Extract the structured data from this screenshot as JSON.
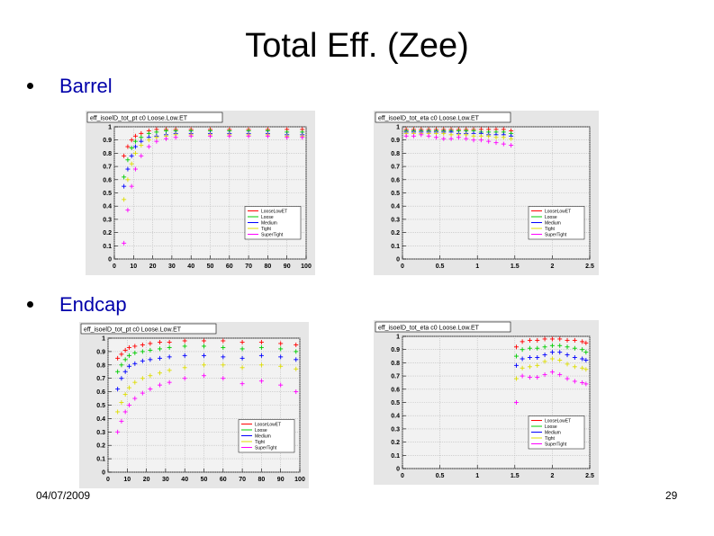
{
  "slide": {
    "title": "Total Eff. (Zee)",
    "bullets": [
      "Barrel",
      "Endcap"
    ],
    "date": "04/07/2009",
    "page": "29"
  },
  "chart_data": [
    {
      "type": "scatter",
      "panel": "barrel-pt",
      "title": "eff_isoelD_tot_pt c0 Loose.Low.ET",
      "xlim": [
        0,
        100
      ],
      "ylim": [
        0,
        1
      ],
      "xticks": [
        0,
        10,
        20,
        30,
        40,
        50,
        60,
        70,
        80,
        90,
        100
      ],
      "yticks": [
        0,
        0.1,
        0.2,
        0.3,
        0.4,
        0.5,
        0.6,
        0.7,
        0.8,
        0.9,
        1
      ],
      "grid": true,
      "legend": "bottom-right",
      "series": [
        {
          "name": "LooseLowET",
          "color": "#ff0000",
          "x": [
            5,
            7,
            9,
            11,
            14,
            18,
            22,
            27,
            32,
            40,
            50,
            60,
            70,
            80,
            90,
            98
          ],
          "y": [
            0.78,
            0.85,
            0.9,
            0.93,
            0.95,
            0.97,
            0.98,
            0.98,
            0.98,
            0.98,
            0.98,
            0.98,
            0.98,
            0.98,
            0.98,
            0.98
          ]
        },
        {
          "name": "Loose",
          "color": "#00cc00",
          "x": [
            5,
            7,
            9,
            11,
            14,
            18,
            22,
            27,
            32,
            40,
            50,
            60,
            70,
            80,
            90,
            98
          ],
          "y": [
            0.62,
            0.75,
            0.84,
            0.89,
            0.92,
            0.95,
            0.96,
            0.97,
            0.97,
            0.97,
            0.97,
            0.97,
            0.97,
            0.97,
            0.96,
            0.96
          ]
        },
        {
          "name": "Medium",
          "color": "#0000ff",
          "x": [
            5,
            7,
            9,
            11,
            14,
            18,
            22,
            27,
            32,
            40,
            50,
            60,
            70,
            80,
            90,
            98
          ],
          "y": [
            0.55,
            0.68,
            0.78,
            0.85,
            0.89,
            0.92,
            0.93,
            0.94,
            0.95,
            0.95,
            0.95,
            0.95,
            0.95,
            0.95,
            0.94,
            0.94
          ]
        },
        {
          "name": "Tight",
          "color": "#dddd00",
          "x": [
            5,
            7,
            9,
            11,
            14,
            18,
            22,
            27,
            32,
            40,
            50,
            60,
            70,
            80,
            90,
            98
          ],
          "y": [
            0.45,
            0.6,
            0.72,
            0.8,
            0.86,
            0.9,
            0.92,
            0.93,
            0.94,
            0.94,
            0.94,
            0.94,
            0.94,
            0.94,
            0.93,
            0.93
          ]
        },
        {
          "name": "SuperTight",
          "color": "#ff00ff",
          "x": [
            5,
            7,
            9,
            11,
            14,
            18,
            22,
            27,
            32,
            40,
            50,
            60,
            70,
            80,
            90,
            98
          ],
          "y": [
            0.12,
            0.37,
            0.55,
            0.68,
            0.78,
            0.85,
            0.89,
            0.91,
            0.92,
            0.93,
            0.93,
            0.93,
            0.93,
            0.93,
            0.92,
            0.92
          ]
        }
      ]
    },
    {
      "type": "scatter",
      "panel": "barrel-eta",
      "title": "eff_isoelD_tot_eta c0 Loose.Low.ET",
      "xlim": [
        0,
        2.5
      ],
      "ylim": [
        0,
        1
      ],
      "xticks": [
        0,
        0.5,
        1,
        1.5,
        2,
        2.5
      ],
      "yticks": [
        0,
        0.1,
        0.2,
        0.3,
        0.4,
        0.5,
        0.6,
        0.7,
        0.8,
        0.9,
        1
      ],
      "grid": true,
      "legend": "bottom-right",
      "series": [
        {
          "name": "LooseLowET",
          "color": "#ff0000",
          "x": [
            0.05,
            0.15,
            0.25,
            0.35,
            0.45,
            0.55,
            0.65,
            0.75,
            0.85,
            0.95,
            1.05,
            1.15,
            1.25,
            1.35,
            1.45
          ],
          "y": [
            0.98,
            0.98,
            0.98,
            0.98,
            0.98,
            0.98,
            0.98,
            0.98,
            0.98,
            0.98,
            0.98,
            0.98,
            0.98,
            0.98,
            0.97
          ]
        },
        {
          "name": "Loose",
          "color": "#00cc00",
          "x": [
            0.05,
            0.15,
            0.25,
            0.35,
            0.45,
            0.55,
            0.65,
            0.75,
            0.85,
            0.95,
            1.05,
            1.15,
            1.25,
            1.35,
            1.45
          ],
          "y": [
            0.97,
            0.97,
            0.97,
            0.97,
            0.97,
            0.97,
            0.97,
            0.97,
            0.97,
            0.97,
            0.96,
            0.96,
            0.96,
            0.96,
            0.95
          ]
        },
        {
          "name": "Medium",
          "color": "#0000ff",
          "x": [
            0.05,
            0.15,
            0.25,
            0.35,
            0.45,
            0.55,
            0.65,
            0.75,
            0.85,
            0.95,
            1.05,
            1.15,
            1.25,
            1.35,
            1.45
          ],
          "y": [
            0.96,
            0.96,
            0.96,
            0.96,
            0.96,
            0.96,
            0.96,
            0.95,
            0.95,
            0.95,
            0.95,
            0.94,
            0.94,
            0.94,
            0.93
          ]
        },
        {
          "name": "Tight",
          "color": "#dddd00",
          "x": [
            0.05,
            0.15,
            0.25,
            0.35,
            0.45,
            0.55,
            0.65,
            0.75,
            0.85,
            0.95,
            1.05,
            1.15,
            1.25,
            1.35,
            1.45
          ],
          "y": [
            0.95,
            0.95,
            0.95,
            0.95,
            0.95,
            0.95,
            0.94,
            0.94,
            0.94,
            0.93,
            0.93,
            0.93,
            0.92,
            0.92,
            0.91
          ]
        },
        {
          "name": "SuperTight",
          "color": "#ff00ff",
          "x": [
            0.05,
            0.15,
            0.25,
            0.35,
            0.45,
            0.55,
            0.65,
            0.75,
            0.85,
            0.95,
            1.05,
            1.15,
            1.25,
            1.35,
            1.45
          ],
          "y": [
            0.93,
            0.93,
            0.94,
            0.93,
            0.92,
            0.91,
            0.91,
            0.92,
            0.91,
            0.9,
            0.9,
            0.89,
            0.88,
            0.87,
            0.86
          ]
        }
      ]
    },
    {
      "type": "scatter",
      "panel": "endcap-pt",
      "title": "eff_isoelD_tot_pt c0 Loose.Low.ET",
      "xlim": [
        0,
        100
      ],
      "ylim": [
        0,
        1
      ],
      "xticks": [
        0,
        10,
        20,
        30,
        40,
        50,
        60,
        70,
        80,
        90,
        100
      ],
      "yticks": [
        0,
        0.1,
        0.2,
        0.3,
        0.4,
        0.5,
        0.6,
        0.7,
        0.8,
        0.9,
        1
      ],
      "grid": true,
      "legend": "bottom-right",
      "series": [
        {
          "name": "LooseLowET",
          "color": "#ff0000",
          "x": [
            5,
            7,
            9,
            11,
            14,
            18,
            22,
            27,
            32,
            40,
            50,
            60,
            70,
            80,
            90,
            98
          ],
          "y": [
            0.85,
            0.88,
            0.91,
            0.93,
            0.94,
            0.95,
            0.96,
            0.97,
            0.97,
            0.98,
            0.98,
            0.98,
            0.97,
            0.97,
            0.96,
            0.95
          ]
        },
        {
          "name": "Loose",
          "color": "#00cc00",
          "x": [
            5,
            7,
            9,
            11,
            14,
            18,
            22,
            27,
            32,
            40,
            50,
            60,
            70,
            80,
            90,
            98
          ],
          "y": [
            0.75,
            0.8,
            0.84,
            0.87,
            0.89,
            0.9,
            0.91,
            0.92,
            0.93,
            0.94,
            0.94,
            0.93,
            0.92,
            0.93,
            0.92,
            0.9
          ]
        },
        {
          "name": "Medium",
          "color": "#0000ff",
          "x": [
            5,
            7,
            9,
            11,
            14,
            18,
            22,
            27,
            32,
            40,
            50,
            60,
            70,
            80,
            90,
            98
          ],
          "y": [
            0.62,
            0.7,
            0.75,
            0.79,
            0.81,
            0.83,
            0.84,
            0.85,
            0.86,
            0.87,
            0.87,
            0.86,
            0.85,
            0.87,
            0.86,
            0.84
          ]
        },
        {
          "name": "Tight",
          "color": "#dddd00",
          "x": [
            5,
            7,
            9,
            11,
            14,
            18,
            22,
            27,
            32,
            40,
            50,
            60,
            70,
            80,
            90,
            98
          ],
          "y": [
            0.45,
            0.52,
            0.58,
            0.63,
            0.67,
            0.7,
            0.72,
            0.74,
            0.76,
            0.78,
            0.8,
            0.8,
            0.78,
            0.8,
            0.79,
            0.77
          ]
        },
        {
          "name": "SuperTight",
          "color": "#ff00ff",
          "x": [
            5,
            7,
            9,
            11,
            14,
            18,
            22,
            27,
            32,
            40,
            50,
            60,
            70,
            80,
            90,
            98
          ],
          "y": [
            0.3,
            0.38,
            0.45,
            0.5,
            0.55,
            0.59,
            0.62,
            0.65,
            0.67,
            0.7,
            0.72,
            0.7,
            0.66,
            0.68,
            0.65,
            0.6
          ]
        }
      ]
    },
    {
      "type": "scatter",
      "panel": "endcap-eta",
      "title": "eff_isoelD_tot_eta c0 Loose.Low.ET",
      "xlim": [
        0,
        2.5
      ],
      "ylim": [
        0,
        1
      ],
      "xticks": [
        0,
        0.5,
        1,
        1.5,
        2,
        2.5
      ],
      "yticks": [
        0,
        0.1,
        0.2,
        0.3,
        0.4,
        0.5,
        0.6,
        0.7,
        0.8,
        0.9,
        1
      ],
      "grid": true,
      "legend": "bottom-right",
      "series": [
        {
          "name": "LooseLowET",
          "color": "#ff0000",
          "x": [
            1.52,
            1.6,
            1.7,
            1.8,
            1.9,
            2.0,
            2.1,
            2.2,
            2.3,
            2.4,
            2.45
          ],
          "y": [
            0.92,
            0.96,
            0.97,
            0.97,
            0.98,
            0.98,
            0.98,
            0.97,
            0.97,
            0.96,
            0.95
          ]
        },
        {
          "name": "Loose",
          "color": "#00cc00",
          "x": [
            1.52,
            1.6,
            1.7,
            1.8,
            1.9,
            2.0,
            2.1,
            2.2,
            2.3,
            2.4,
            2.45
          ],
          "y": [
            0.85,
            0.9,
            0.91,
            0.91,
            0.92,
            0.93,
            0.93,
            0.92,
            0.91,
            0.9,
            0.88
          ]
        },
        {
          "name": "Medium",
          "color": "#0000ff",
          "x": [
            1.52,
            1.6,
            1.7,
            1.8,
            1.9,
            2.0,
            2.1,
            2.2,
            2.3,
            2.4,
            2.45
          ],
          "y": [
            0.78,
            0.83,
            0.84,
            0.84,
            0.86,
            0.88,
            0.88,
            0.86,
            0.84,
            0.83,
            0.82
          ]
        },
        {
          "name": "Tight",
          "color": "#dddd00",
          "x": [
            1.52,
            1.6,
            1.7,
            1.8,
            1.9,
            2.0,
            2.1,
            2.2,
            2.3,
            2.4,
            2.45
          ],
          "y": [
            0.68,
            0.76,
            0.77,
            0.78,
            0.81,
            0.83,
            0.82,
            0.79,
            0.77,
            0.76,
            0.75
          ]
        },
        {
          "name": "SuperTight",
          "color": "#ff00ff",
          "x": [
            1.52,
            1.6,
            1.7,
            1.8,
            1.9,
            2.0,
            2.1,
            2.2,
            2.3,
            2.4,
            2.45
          ],
          "y": [
            0.5,
            0.7,
            0.69,
            0.69,
            0.71,
            0.73,
            0.71,
            0.68,
            0.66,
            0.65,
            0.64
          ]
        }
      ]
    }
  ]
}
